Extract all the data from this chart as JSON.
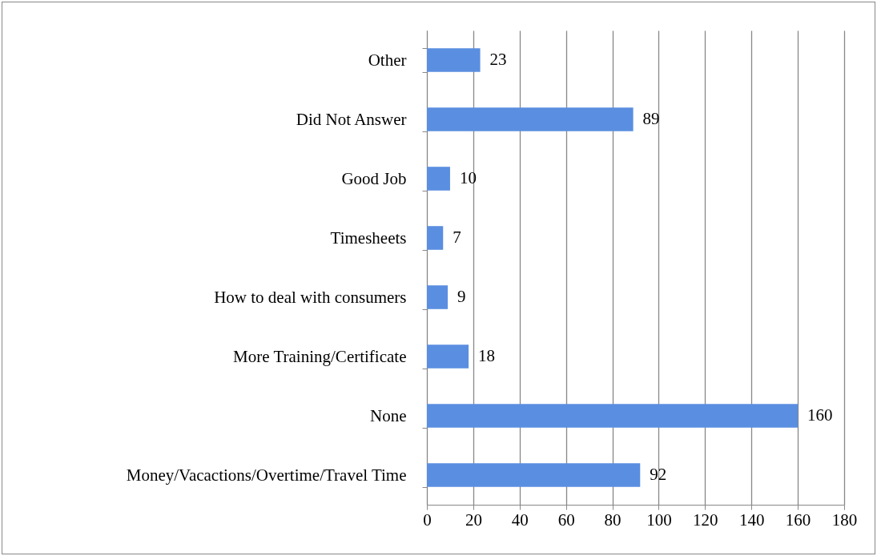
{
  "chart_data": {
    "type": "bar",
    "orientation": "horizontal",
    "categories": [
      "Other",
      "Did Not Answer",
      "Good Job",
      "Timesheets",
      "How to deal with consumers",
      "More Training/Certificate",
      "None",
      "Money/Vacactions/Overtime/Travel Time"
    ],
    "values": [
      23,
      89,
      10,
      7,
      9,
      18,
      160,
      92
    ],
    "color": "#5a8ee0",
    "xlim": [
      0,
      180
    ],
    "xticks": [
      0,
      20,
      40,
      60,
      80,
      100,
      120,
      140,
      160,
      180
    ],
    "grid": "x",
    "data_labels": true
  }
}
